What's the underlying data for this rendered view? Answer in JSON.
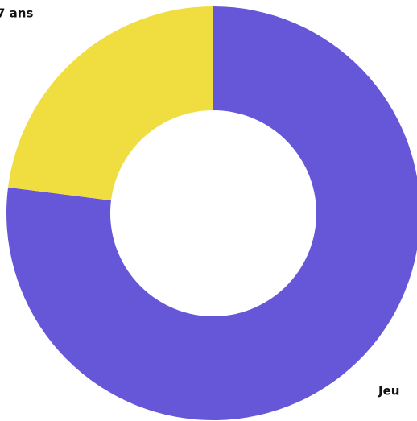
{
  "chart_data": {
    "type": "donut",
    "categories": [
      "Jeu",
      "7 ans"
    ],
    "values": [
      77,
      23
    ],
    "colors": [
      "#6557d8",
      "#f0dd3f"
    ]
  }
}
